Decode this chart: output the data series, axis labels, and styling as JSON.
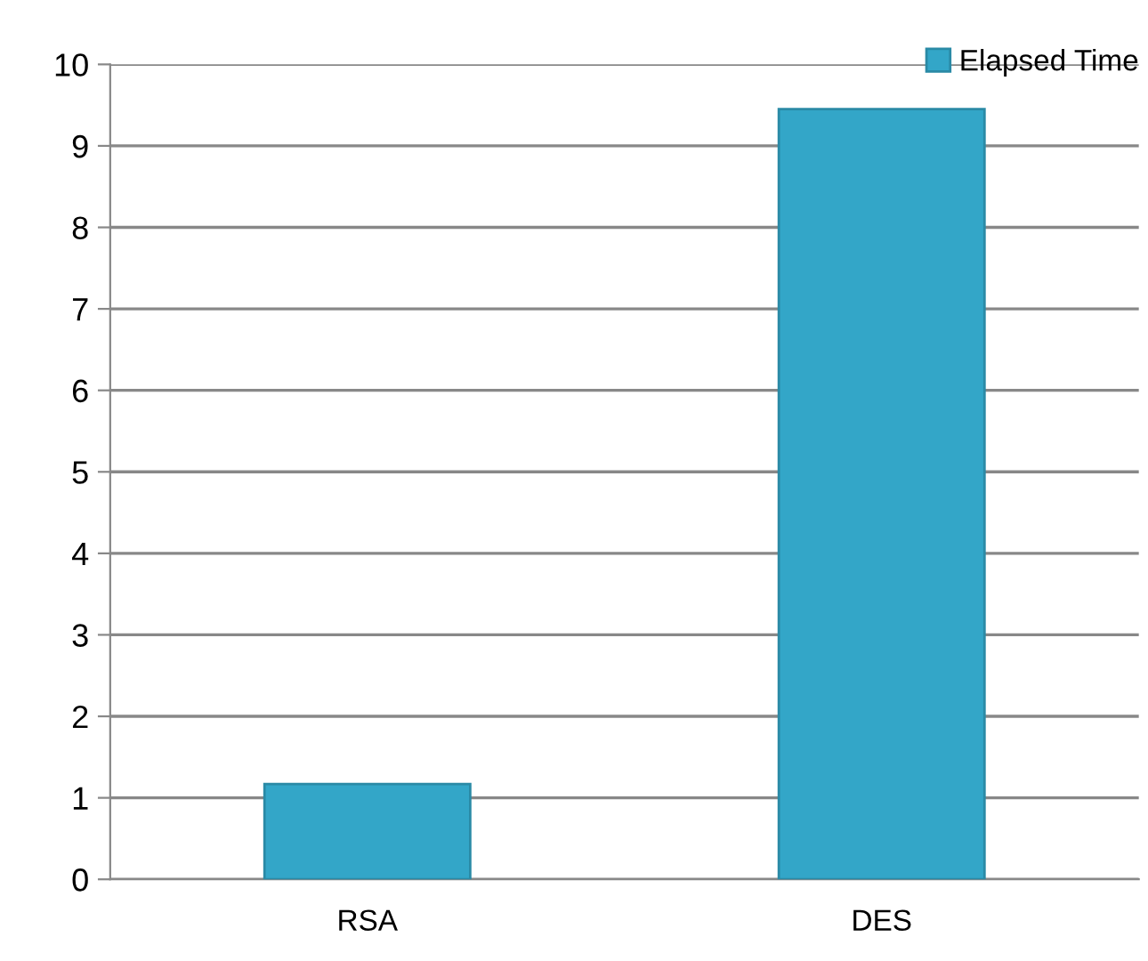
{
  "chart_data": {
    "type": "bar",
    "categories": [
      "RSA",
      "DES"
    ],
    "series": [
      {
        "name": "Elapsed Time",
        "color": "#33a6c8",
        "values": [
          1.17,
          9.45
        ]
      }
    ],
    "ylim": [
      0,
      10
    ],
    "yticks": [
      0,
      1,
      2,
      3,
      4,
      5,
      6,
      7,
      8,
      9,
      10
    ],
    "grid": "y",
    "legend": "top right"
  }
}
